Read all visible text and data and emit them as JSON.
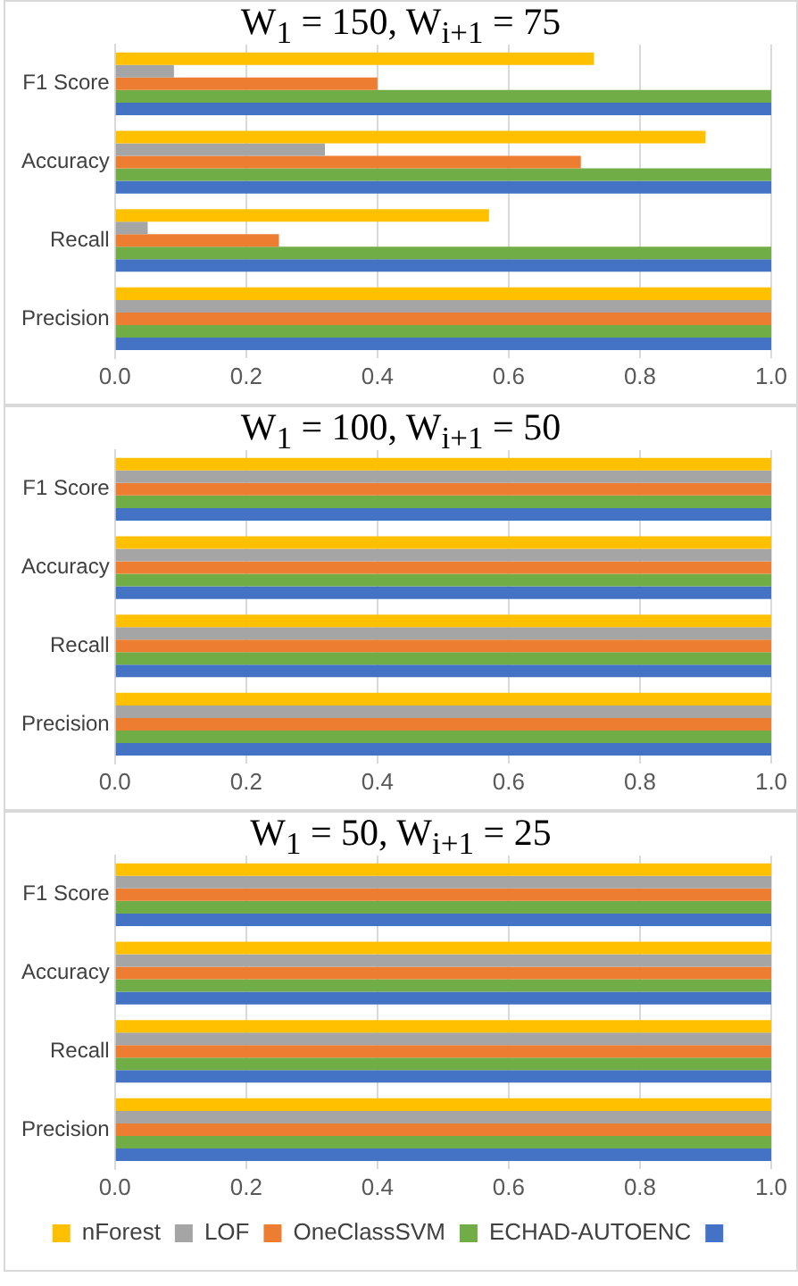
{
  "chart_data": [
    {
      "type": "bar",
      "orientation": "horizontal",
      "title": "W$_{1}$ = 150, W$_{i+1}$ = 75",
      "categories": [
        "F1 Score",
        "Accuracy",
        "Recall",
        "Precision"
      ],
      "xlim": [
        0,
        1
      ],
      "xticks": [
        {
          "value": 0,
          "label": "0.0"
        },
        {
          "value": 0.2,
          "label": "0.2"
        },
        {
          "value": 0.4,
          "label": "0.4"
        },
        {
          "value": 0.6,
          "label": "0.6"
        },
        {
          "value": 0.8,
          "label": "0.8"
        },
        {
          "value": 1,
          "label": "1.0"
        }
      ],
      "grid": "x",
      "legend": false,
      "series": [
        {
          "color": "#ffc000",
          "values": [
            0.73,
            0.9,
            0.57,
            1
          ]
        },
        {
          "color": "#a5a5a5",
          "values": [
            0.09,
            0.32,
            0.05,
            1
          ]
        },
        {
          "color": "#ed7d31",
          "values": [
            0.4,
            0.71,
            0.25,
            1
          ]
        },
        {
          "color": "#70ad47",
          "values": [
            1,
            1,
            1,
            1
          ]
        },
        {
          "color": "#4472c4",
          "values": [
            1,
            1,
            1,
            1
          ]
        }
      ]
    },
    {
      "type": "bar",
      "orientation": "horizontal",
      "title": "W$_{1}$ = 100, W$_{i+1}$ = 50",
      "categories": [
        "F1 Score",
        "Accuracy",
        "Recall",
        "Precision"
      ],
      "xlim": [
        0,
        1
      ],
      "xticks": [
        {
          "value": 0,
          "label": "0.0"
        },
        {
          "value": 0.2,
          "label": "0.2"
        },
        {
          "value": 0.4,
          "label": "0.4"
        },
        {
          "value": 0.6,
          "label": "0.6"
        },
        {
          "value": 0.8,
          "label": "0.8"
        },
        {
          "value": 1,
          "label": "1.0"
        }
      ],
      "grid": "x",
      "legend": false,
      "series": [
        {
          "color": "#ffc000",
          "values": [
            1,
            1,
            1,
            1
          ]
        },
        {
          "color": "#a5a5a5",
          "values": [
            1,
            1,
            1,
            1
          ]
        },
        {
          "color": "#ed7d31",
          "values": [
            1,
            1,
            1,
            1
          ]
        },
        {
          "color": "#70ad47",
          "values": [
            1,
            1,
            1,
            1
          ]
        },
        {
          "color": "#4472c4",
          "values": [
            1,
            1,
            1,
            1
          ]
        }
      ]
    },
    {
      "type": "bar",
      "orientation": "horizontal",
      "title": "W$_{1}$ = 50, W$_{i+1}$ = 25",
      "categories": [
        "F1 Score",
        "Accuracy",
        "Recall",
        "Precision"
      ],
      "xlim": [
        0,
        1
      ],
      "xticks": [
        {
          "value": 0,
          "label": "0.0"
        },
        {
          "value": 0.2,
          "label": "0.2"
        },
        {
          "value": 0.4,
          "label": "0.4"
        },
        {
          "value": 0.6,
          "label": "0.6"
        },
        {
          "value": 0.8,
          "label": "0.8"
        },
        {
          "value": 1,
          "label": "1.0"
        }
      ],
      "grid": "x",
      "legend": "bottom",
      "series": [
        {
          "name": "nForest",
          "color": "#ffc000",
          "values": [
            1,
            1,
            1,
            1
          ]
        },
        {
          "name": "LOF",
          "color": "#a5a5a5",
          "values": [
            1,
            1,
            1,
            1
          ]
        },
        {
          "name": "OneClassSVM",
          "color": "#ed7d31",
          "values": [
            1,
            1,
            1,
            1
          ]
        },
        {
          "name": "ECHAD-AUTOENC",
          "color": "#70ad47",
          "values": [
            1,
            1,
            1,
            1
          ]
        },
        {
          "color": "#4472c4",
          "values": [
            1,
            1,
            1,
            1
          ]
        }
      ]
    }
  ]
}
